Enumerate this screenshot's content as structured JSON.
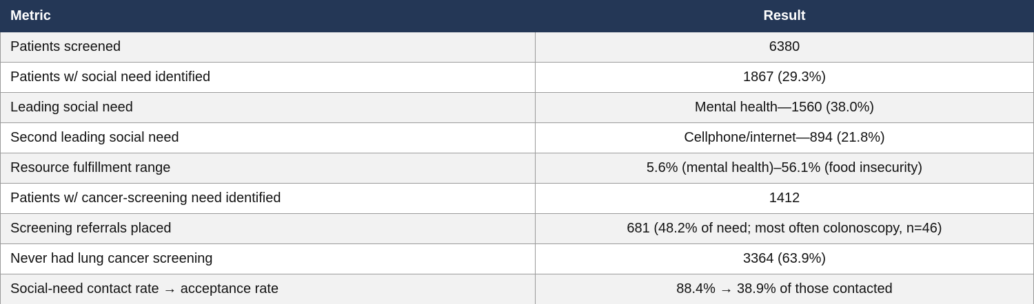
{
  "table": {
    "header": [
      "Metric",
      "Result"
    ],
    "rows": [
      [
        "Patients screened",
        "6380"
      ],
      [
        "Patients w/ social need identified",
        "1867 (29.3%)"
      ],
      [
        "Leading social need",
        "Mental health—1560 (38.0%)"
      ],
      [
        "Second leading social need",
        "Cellphone/internet—894 (21.8%)"
      ],
      [
        "Resource fulfillment range",
        "5.6% (mental health)–56.1% (food insecurity)"
      ],
      [
        "Patients w/ cancer-screening need identified",
        "1412"
      ],
      [
        "Screening referrals placed",
        "681 (48.2% of need; most often colonoscopy, n=46)"
      ],
      [
        "Never had lung cancer screening",
        "3364 (63.9%)"
      ],
      [
        "Social-need contact rate → acceptance rate",
        "88.4% → 38.9% of those contacted"
      ]
    ]
  }
}
